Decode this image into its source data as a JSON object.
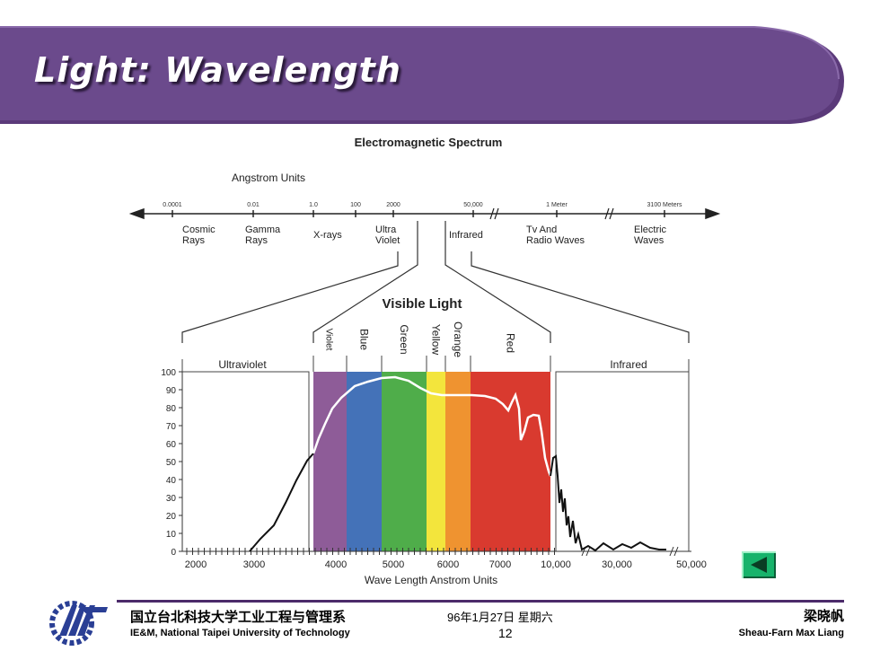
{
  "slide": {
    "title": "Light: Wavelength",
    "banner_color": "#6b4a8c"
  },
  "figure": {
    "title": "Electromagnetic Spectrum",
    "angstrom_label": "Angstrom Units",
    "scale_ticks": [
      "0.0001",
      "0.01",
      "1.0",
      "100",
      "2000",
      "50,000",
      "1 Meter",
      "3100 Meters"
    ],
    "bands": [
      [
        "Cosmic",
        "Rays"
      ],
      [
        "Gamma",
        "Rays"
      ],
      [
        "X-rays"
      ],
      [
        "Ultra",
        "Violet"
      ],
      [
        "Infrared"
      ],
      [
        "Tv And",
        "Radio Waves"
      ],
      [
        "Electric",
        "Waves"
      ]
    ],
    "visible_light_label": "Visible Light",
    "ultraviolet_label": "Ultraviolet",
    "infrared_label": "Infrared",
    "colors": [
      {
        "name": "Violet",
        "hex": "#8e5c98"
      },
      {
        "name": "Blue",
        "hex": "#4472b8"
      },
      {
        "name": "Green",
        "hex": "#4fad4a"
      },
      {
        "name": "Yellow",
        "hex": "#f3e53c"
      },
      {
        "name": "Orange",
        "hex": "#ef9330"
      },
      {
        "name": "Red",
        "hex": "#d93a2f"
      }
    ],
    "y_ticks": [
      "100",
      "90",
      "80",
      "70",
      "60",
      "50",
      "40",
      "30",
      "20",
      "10",
      "0"
    ],
    "x_ticks": [
      "2000",
      "3000",
      "4000",
      "5000",
      "6000",
      "7000",
      "10,000",
      "30,000",
      "50,000"
    ],
    "x_axis_label": "Wave Length Anstrom Units"
  },
  "footer": {
    "school_cn": "国立台北科技大学工业工程与管理系",
    "school_en": "IE&M, National Taipei University of Technology",
    "date": "96年1月27日 星期六",
    "page": "12",
    "author_cn": "梁晓帆",
    "author_en": "Sheau-Farn Max Liang"
  },
  "nav": {
    "back_icon": "triangle-left-icon",
    "button_color": "#17b36b"
  }
}
